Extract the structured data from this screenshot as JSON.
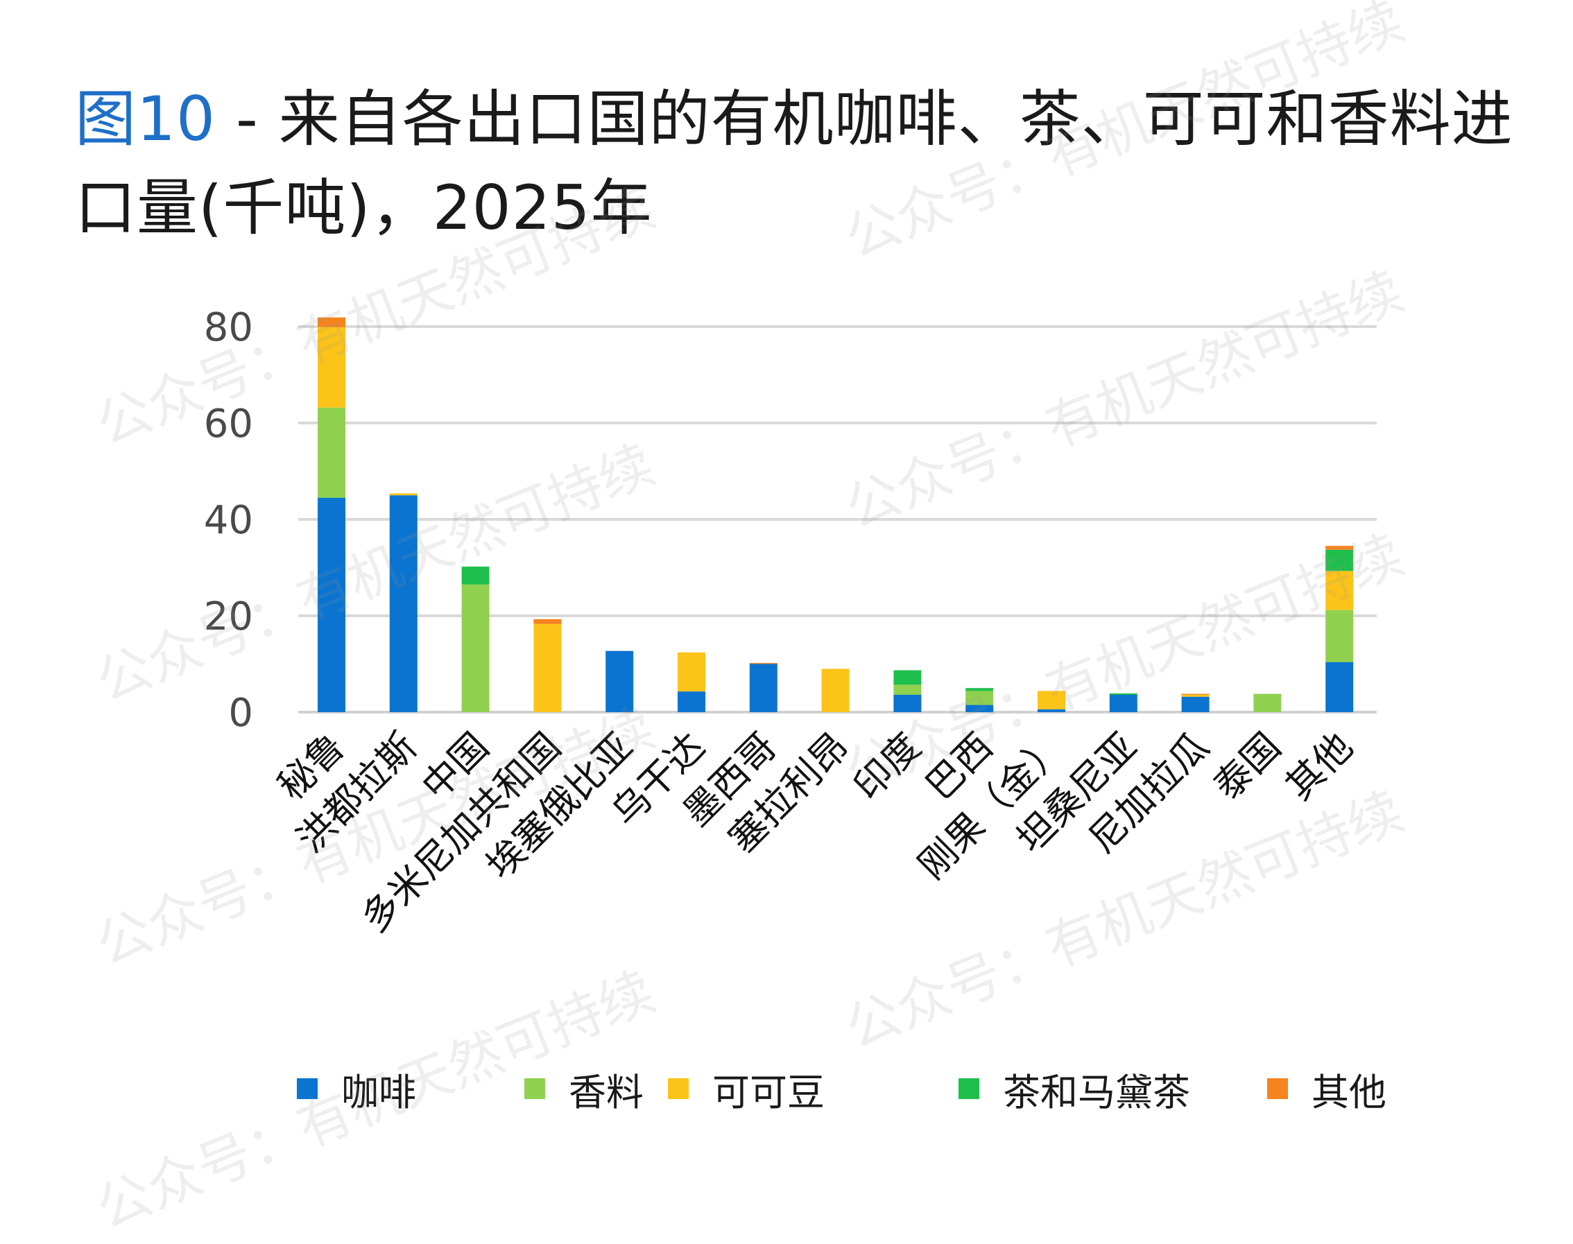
{
  "title": {
    "fig_label": "图10",
    "text": " - 来自各出口国的有机咖啡、茶、可可和香料进口量(千吨)，2025年"
  },
  "watermark": "公众号：有机天然可持续",
  "colors": {
    "咖啡": "#0a74d0",
    "香料": "#8fd14f",
    "可可豆": "#fcc419",
    "茶和马黛茶": "#1fbf4c",
    "其他": "#f5841f"
  },
  "chart_data": {
    "type": "bar",
    "stacked": true,
    "ylim": [
      0,
      80
    ],
    "yticks": [
      0,
      20,
      40,
      60,
      80
    ],
    "grid": true,
    "legend_position": "bottom",
    "categories": [
      "秘鲁",
      "洪都拉斯",
      "中国",
      "多米尼加共和国",
      "埃塞俄比亚",
      "乌干达",
      "墨西哥",
      "塞拉利昂",
      "印度",
      "巴西",
      "刚果（金）",
      "坦桑尼亚",
      "尼加拉瓜",
      "泰国",
      "其他"
    ],
    "series": [
      {
        "name": "咖啡",
        "values": [
          44.5,
          45,
          0,
          0,
          12.7,
          4.3,
          10,
          0,
          3.6,
          1.5,
          0.6,
          3.6,
          3.2,
          0,
          10.4
        ]
      },
      {
        "name": "香料",
        "values": [
          18.7,
          0,
          26.5,
          0,
          0,
          0,
          0,
          0,
          2.1,
          2.9,
          0,
          0,
          0,
          3.8,
          10.8
        ]
      },
      {
        "name": "可可豆",
        "values": [
          16.7,
          0.4,
          0,
          18.3,
          0,
          8.1,
          0,
          9,
          0,
          0,
          3.8,
          0,
          0.4,
          0,
          8.1
        ]
      },
      {
        "name": "茶和马黛茶",
        "values": [
          0,
          0,
          3.7,
          0,
          0,
          0,
          0,
          0,
          3,
          0.6,
          0,
          0.3,
          0,
          0,
          4.4
        ]
      },
      {
        "name": "其他",
        "values": [
          2,
          0,
          0,
          1,
          0,
          0,
          0.2,
          0,
          0,
          0,
          0,
          0,
          0.2,
          0,
          0.8
        ]
      }
    ]
  }
}
